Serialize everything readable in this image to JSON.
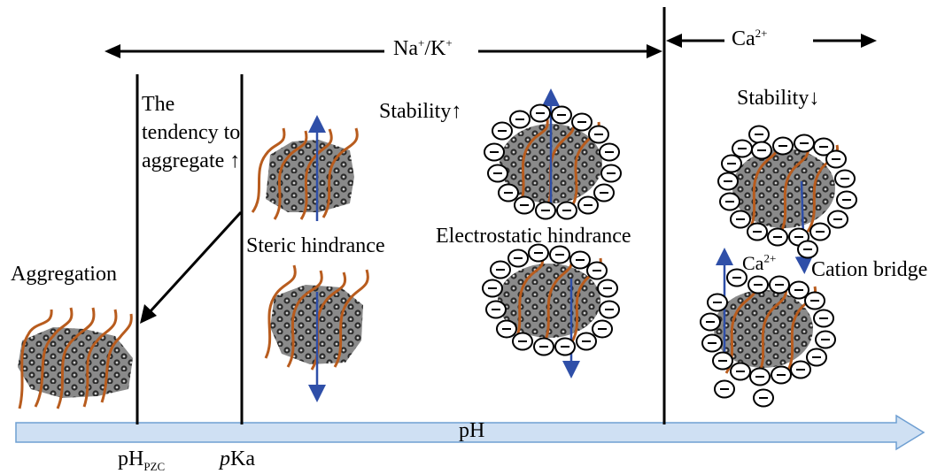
{
  "labels": {
    "na_k_base": "Na",
    "na_sup": "+",
    "slash_k": "/K",
    "k_sup": "+",
    "ca_base": "Ca",
    "ca_sup": "2+",
    "stability_up": "Stability↑",
    "stability_down": "Stability↓",
    "tendency": "The tendency to aggregate ↑",
    "aggregation": "Aggregation",
    "steric": "Steric hindrance",
    "electrostatic": "Electrostatic hindrance",
    "cation_bridge": "Cation bridge",
    "ca_small_base": "Ca",
    "ca_small_sup": "2+",
    "ph_axis": "pH",
    "phpzc_base": "pH",
    "phpzc_sub": "PZC",
    "pka_p": "p",
    "pka_rest": "Ka"
  },
  "colors": {
    "axis_fill": "#cfe0f3",
    "axis_stroke": "#6f9fd2",
    "polymer": "#b85c1e",
    "arrow_blue": "#2f4fa8",
    "particle_dark": "#3a3a3a"
  }
}
